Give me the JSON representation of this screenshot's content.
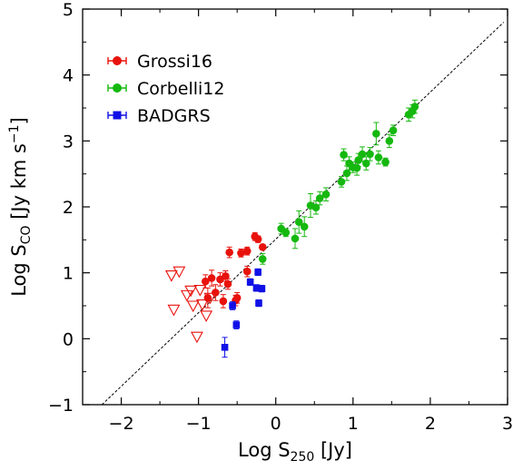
{
  "chart_data": {
    "type": "scatter",
    "xlabel": {
      "main": "Log S",
      "sub": "250",
      "unit": " [Jy]"
    },
    "ylabel": {
      "main": "Log S",
      "sub": "CO",
      "unit": " [Jy km s",
      "sup": "−1",
      "close": "]"
    },
    "xlim": [
      -2.5,
      3
    ],
    "ylim": [
      -1,
      5
    ],
    "xticks": [
      {
        "v": -2,
        "label": "−2"
      },
      {
        "v": -1,
        "label": "−1"
      },
      {
        "v": 0,
        "label": "0"
      },
      {
        "v": 1,
        "label": "1"
      },
      {
        "v": 2,
        "label": "2"
      },
      {
        "v": 3,
        "label": "3"
      }
    ],
    "yticks": [
      {
        "v": -1,
        "label": "−1"
      },
      {
        "v": 0,
        "label": "0"
      },
      {
        "v": 1,
        "label": "1"
      },
      {
        "v": 2,
        "label": "2"
      },
      {
        "v": 3,
        "label": "3"
      },
      {
        "v": 4,
        "label": "4"
      },
      {
        "v": 5,
        "label": "5"
      }
    ],
    "fit_line": {
      "style": "dashed",
      "x": [
        -2.25,
        2.95
      ],
      "y": [
        -1.0,
        4.8
      ]
    },
    "legend": {
      "placement": "top-left"
    },
    "series": [
      {
        "name": "Grossi16",
        "color": "#e8120c",
        "marker": "circle",
        "points": [
          {
            "x": -0.91,
            "y": 0.87,
            "err": 0.1
          },
          {
            "x": -0.88,
            "y": 0.62,
            "err": 0.15
          },
          {
            "x": -0.83,
            "y": 0.92,
            "err": 0.12
          },
          {
            "x": -0.78,
            "y": 0.7,
            "err": 0.12
          },
          {
            "x": -0.72,
            "y": 0.9,
            "err": 0.1
          },
          {
            "x": -0.68,
            "y": 0.57,
            "err": 0.1
          },
          {
            "x": -0.65,
            "y": 0.95,
            "err": 0.08
          },
          {
            "x": -0.62,
            "y": 0.83,
            "err": 0.08
          },
          {
            "x": -0.6,
            "y": 1.31,
            "err": 0.08
          },
          {
            "x": -0.52,
            "y": 0.58,
            "err": 0.08
          },
          {
            "x": -0.5,
            "y": 0.62,
            "err": 0.08
          },
          {
            "x": -0.45,
            "y": 1.3,
            "err": 0.06
          },
          {
            "x": -0.37,
            "y": 1.33,
            "err": 0.06
          },
          {
            "x": -0.37,
            "y": 1.02,
            "err": 0.08
          },
          {
            "x": -0.27,
            "y": 1.55,
            "err": 0.06
          },
          {
            "x": -0.23,
            "y": 1.51,
            "err": 0.05
          },
          {
            "x": -0.17,
            "y": 1.39,
            "err": 0.04
          }
        ]
      },
      {
        "name": "Corbelli12",
        "color": "#15b80f",
        "marker": "circle",
        "points": [
          {
            "x": -0.17,
            "y": 1.21,
            "err": 0.08
          },
          {
            "x": 0.07,
            "y": 1.67,
            "err": 0.08
          },
          {
            "x": 0.13,
            "y": 1.61,
            "err": 0.06
          },
          {
            "x": 0.25,
            "y": 1.52,
            "err": 0.15
          },
          {
            "x": 0.3,
            "y": 1.77,
            "err": 0.17
          },
          {
            "x": 0.37,
            "y": 1.7,
            "err": 0.15
          },
          {
            "x": 0.45,
            "y": 2.02,
            "err": 0.18
          },
          {
            "x": 0.52,
            "y": 1.99,
            "err": 0.1
          },
          {
            "x": 0.57,
            "y": 2.13,
            "err": 0.1
          },
          {
            "x": 0.65,
            "y": 2.19,
            "err": 0.1
          },
          {
            "x": 0.85,
            "y": 2.38,
            "err": 0.08
          },
          {
            "x": 0.88,
            "y": 2.79,
            "err": 0.09
          },
          {
            "x": 0.92,
            "y": 2.51,
            "err": 0.11
          },
          {
            "x": 0.95,
            "y": 2.66,
            "err": 0.1
          },
          {
            "x": 1.0,
            "y": 2.6,
            "err": 0.08
          },
          {
            "x": 1.05,
            "y": 2.59,
            "err": 0.11
          },
          {
            "x": 1.07,
            "y": 2.71,
            "err": 0.1
          },
          {
            "x": 1.12,
            "y": 2.8,
            "err": 0.11
          },
          {
            "x": 1.17,
            "y": 2.66,
            "err": 0.1
          },
          {
            "x": 1.22,
            "y": 2.8,
            "err": 0.1
          },
          {
            "x": 1.3,
            "y": 3.11,
            "err": 0.17
          },
          {
            "x": 1.33,
            "y": 2.75,
            "err": 0.1
          },
          {
            "x": 1.42,
            "y": 2.68,
            "err": 0.06
          },
          {
            "x": 1.47,
            "y": 3.0,
            "err": 0.1
          },
          {
            "x": 1.52,
            "y": 3.16,
            "err": 0.08
          },
          {
            "x": 1.72,
            "y": 3.4,
            "err": 0.1
          },
          {
            "x": 1.77,
            "y": 3.45,
            "err": 0.1
          },
          {
            "x": 1.8,
            "y": 3.52,
            "err": 0.1
          }
        ]
      },
      {
        "name": "BADGRS",
        "color": "#1010e6",
        "marker": "square",
        "points": [
          {
            "x": -0.66,
            "y": -0.13,
            "err": 0.15
          },
          {
            "x": -0.56,
            "y": 0.5,
            "err": 0.06
          },
          {
            "x": -0.51,
            "y": 0.21,
            "err": 0.06
          },
          {
            "x": -0.33,
            "y": 0.86,
            "err": 0.05
          },
          {
            "x": -0.25,
            "y": 0.77,
            "err": 0.05
          },
          {
            "x": -0.23,
            "y": 1.01,
            "err": 0.05
          },
          {
            "x": -0.22,
            "y": 0.54,
            "err": 0.05
          },
          {
            "x": -0.18,
            "y": 0.76,
            "err": 0.05
          }
        ]
      },
      {
        "name": "",
        "color": "#e8120c",
        "marker": "open-triangle-down",
        "points": [
          {
            "x": -1.35,
            "y": 0.96
          },
          {
            "x": -1.25,
            "y": 1.02
          },
          {
            "x": -1.32,
            "y": 0.44
          },
          {
            "x": -1.15,
            "y": 0.66
          },
          {
            "x": -1.1,
            "y": 0.73
          },
          {
            "x": -1.07,
            "y": 0.5
          },
          {
            "x": -0.98,
            "y": 0.74
          },
          {
            "x": -0.95,
            "y": 0.52
          },
          {
            "x": -0.9,
            "y": 0.35
          },
          {
            "x": -1.02,
            "y": 0.03
          },
          {
            "x": -0.85,
            "y": 0.62
          }
        ]
      }
    ]
  }
}
